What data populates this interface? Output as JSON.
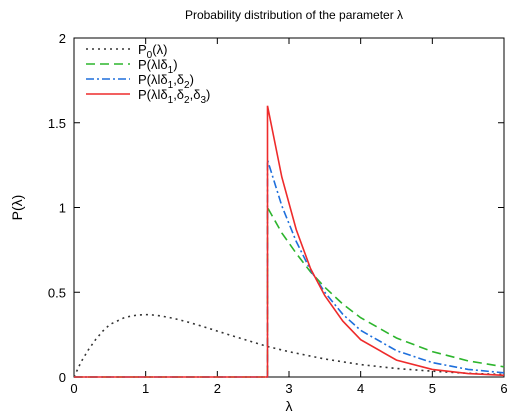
{
  "chart_data": {
    "type": "line",
    "title": "Probability distribution of the parameter λ",
    "xlabel": "λ",
    "ylabel": "P(λ)",
    "xlim": [
      0,
      6
    ],
    "ylim": [
      0,
      2
    ],
    "xticks": [
      "0",
      "1",
      "2",
      "3",
      "4",
      "5",
      "6"
    ],
    "yticks": [
      "0",
      "0.5",
      "1",
      "1.5",
      "2"
    ],
    "grid": false,
    "legend_position": "top-left",
    "series": [
      {
        "legend": [
          {
            "t": "P"
          },
          {
            "t": "0",
            "sub": true
          },
          {
            "t": "(λ)"
          }
        ],
        "color": "#333333",
        "dash": "2,4",
        "points": [
          [
            0,
            0
          ],
          [
            0.1,
            0.09
          ],
          [
            0.2,
            0.16
          ],
          [
            0.3,
            0.22
          ],
          [
            0.4,
            0.27
          ],
          [
            0.5,
            0.31
          ],
          [
            0.6,
            0.33
          ],
          [
            0.7,
            0.35
          ],
          [
            0.8,
            0.36
          ],
          [
            0.9,
            0.366
          ],
          [
            1.0,
            0.368
          ],
          [
            1.1,
            0.366
          ],
          [
            1.2,
            0.361
          ],
          [
            1.4,
            0.345
          ],
          [
            1.6,
            0.323
          ],
          [
            1.8,
            0.298
          ],
          [
            2.0,
            0.271
          ],
          [
            2.2,
            0.244
          ],
          [
            2.4,
            0.218
          ],
          [
            2.7,
            0.18
          ],
          [
            3.0,
            0.149
          ],
          [
            3.5,
            0.106
          ],
          [
            4.0,
            0.073
          ],
          [
            4.5,
            0.05
          ],
          [
            5.0,
            0.034
          ],
          [
            5.5,
            0.022
          ],
          [
            6.0,
            0.015
          ]
        ]
      },
      {
        "legend": [
          {
            "t": "P(λlδ"
          },
          {
            "t": "1",
            "sub": true
          },
          {
            "t": ")"
          }
        ],
        "color": "#2db52d",
        "dash": "9,5",
        "points": [
          [
            0,
            0
          ],
          [
            2.7,
            0
          ],
          [
            2.7,
            1.0
          ],
          [
            2.9,
            0.85
          ],
          [
            3.1,
            0.73
          ],
          [
            3.3,
            0.62
          ],
          [
            3.5,
            0.53
          ],
          [
            3.75,
            0.43
          ],
          [
            4.0,
            0.35
          ],
          [
            4.5,
            0.23
          ],
          [
            5.0,
            0.15
          ],
          [
            5.5,
            0.095
          ],
          [
            6.0,
            0.06
          ]
        ]
      },
      {
        "legend": [
          {
            "t": "P(λlδ"
          },
          {
            "t": "1",
            "sub": true
          },
          {
            "t": ",δ"
          },
          {
            "t": "2",
            "sub": true
          },
          {
            "t": ")"
          }
        ],
        "color": "#1e6fdc",
        "dash": "8,3,2,3",
        "points": [
          [
            0,
            0
          ],
          [
            2.7,
            0
          ],
          [
            2.7,
            1.28
          ],
          [
            2.9,
            1.01
          ],
          [
            3.1,
            0.8
          ],
          [
            3.3,
            0.63
          ],
          [
            3.5,
            0.5
          ],
          [
            3.75,
            0.37
          ],
          [
            4.0,
            0.275
          ],
          [
            4.5,
            0.155
          ],
          [
            5.0,
            0.085
          ],
          [
            5.5,
            0.045
          ],
          [
            6.0,
            0.025
          ]
        ]
      },
      {
        "legend": [
          {
            "t": "P(λlδ"
          },
          {
            "t": "1",
            "sub": true
          },
          {
            "t": ",δ"
          },
          {
            "t": "2",
            "sub": true
          },
          {
            "t": ",δ"
          },
          {
            "t": "3",
            "sub": true
          },
          {
            "t": ")"
          }
        ],
        "color": "#ee2b2b",
        "dash": "",
        "points": [
          [
            0,
            0
          ],
          [
            2.7,
            0
          ],
          [
            2.7,
            1.6
          ],
          [
            2.9,
            1.18
          ],
          [
            3.1,
            0.87
          ],
          [
            3.3,
            0.64
          ],
          [
            3.5,
            0.48
          ],
          [
            3.75,
            0.33
          ],
          [
            4.0,
            0.22
          ],
          [
            4.5,
            0.1
          ],
          [
            5.0,
            0.045
          ],
          [
            5.5,
            0.02
          ],
          [
            6.0,
            0.01
          ]
        ]
      }
    ]
  }
}
